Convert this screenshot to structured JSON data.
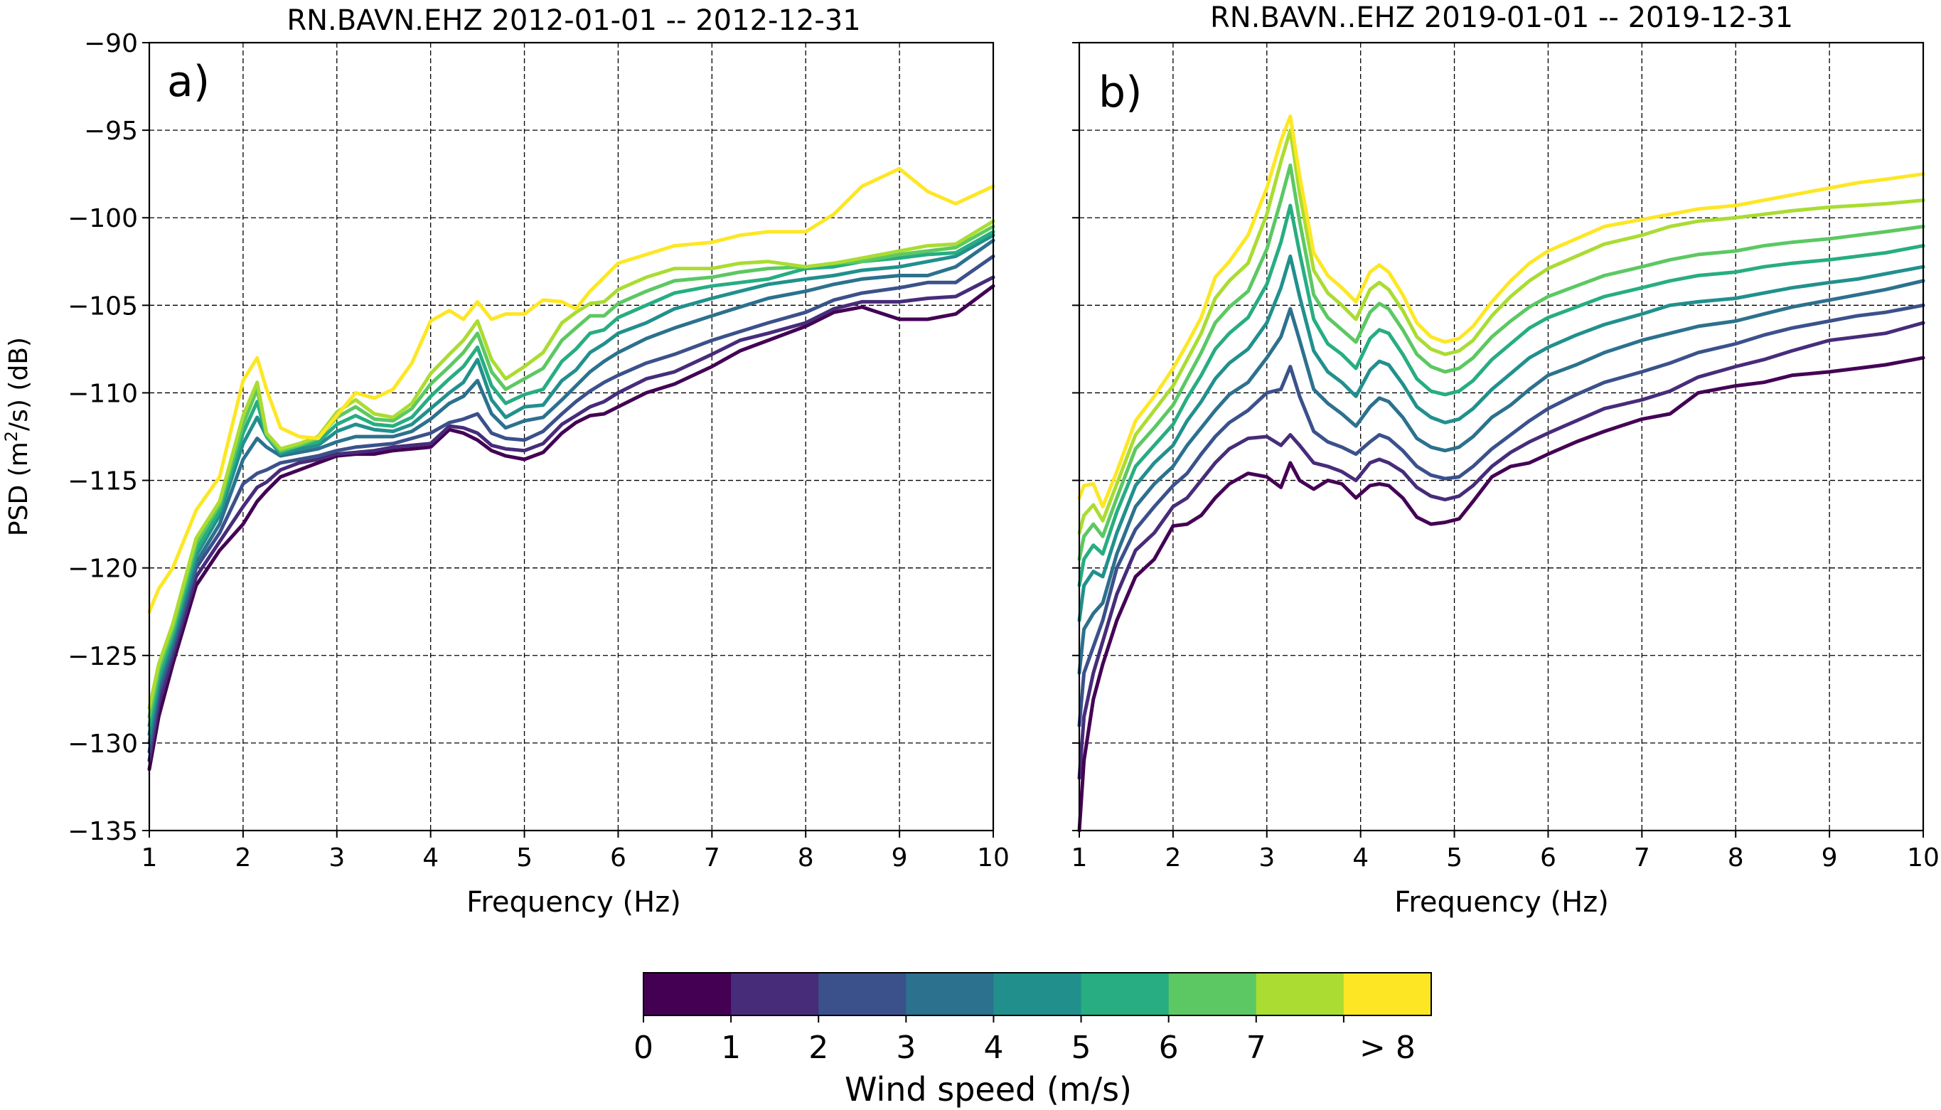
{
  "figure": {
    "colorbar": {
      "label": "Wind speed (m/s)",
      "tick_labels": [
        "0",
        "1",
        "2",
        "3",
        "4",
        "5",
        "6",
        "7",
        "> 8"
      ],
      "colors": [
        "#440154",
        "#472c7a",
        "#3b518b",
        "#2c718e",
        "#21908d",
        "#27ad81",
        "#5cc863",
        "#aadc32",
        "#fde725"
      ]
    }
  },
  "chart_data": [
    {
      "type": "line",
      "panel_label": "a)",
      "title": "RN.BAVN.EHZ  2012-01-01 -- 2012-12-31",
      "xlabel": "Frequency (Hz)",
      "ylabel_parts": [
        "PSD (m",
        "2",
        "/s) (dB)"
      ],
      "xlim": [
        1,
        10
      ],
      "ylim": [
        -135,
        -90
      ],
      "xticks": [
        1,
        2,
        3,
        4,
        5,
        6,
        7,
        8,
        9,
        10
      ],
      "yticks": [
        -135,
        -130,
        -125,
        -120,
        -115,
        -110,
        -105,
        -100,
        -95,
        -90
      ],
      "ytick_labels": [
        "−135",
        "−130",
        "−125",
        "−120",
        "−115",
        "−110",
        "−105",
        "−100",
        "−95",
        "−90"
      ],
      "grid": true,
      "x": [
        1,
        1.1,
        1.25,
        1.5,
        1.75,
        2,
        2.15,
        2.25,
        2.4,
        2.6,
        2.8,
        3,
        3.2,
        3.4,
        3.6,
        3.8,
        4,
        4.2,
        4.35,
        4.5,
        4.65,
        4.8,
        5,
        5.2,
        5.4,
        5.55,
        5.7,
        5.85,
        6,
        6.3,
        6.6,
        7,
        7.3,
        7.6,
        8,
        8.3,
        8.6,
        9,
        9.3,
        9.6,
        10
      ],
      "series": [
        {
          "color": "#440154",
          "values": [
            -131.5,
            -128.5,
            -125.5,
            -121,
            -119,
            -117.5,
            -116.2,
            -115.6,
            -114.8,
            -114.4,
            -114,
            -113.6,
            -113.5,
            -113.5,
            -113.3,
            -113.2,
            -113.1,
            -112.1,
            -112.3,
            -112.7,
            -113.3,
            -113.6,
            -113.8,
            -113.4,
            -112.3,
            -111.7,
            -111.3,
            -111.2,
            -110.8,
            -110,
            -109.5,
            -108.5,
            -107.6,
            -107,
            -106.2,
            -105.4,
            -105.1,
            -105.8,
            -105.8,
            -105.5,
            -103.9
          ]
        },
        {
          "color": "#472c7a",
          "values": [
            -131,
            -127.8,
            -125,
            -120.5,
            -118.5,
            -116.5,
            -115.4,
            -115.1,
            -114.4,
            -114,
            -113.8,
            -113.5,
            -113.4,
            -113.3,
            -113.1,
            -113,
            -112.9,
            -111.9,
            -112,
            -112.3,
            -113,
            -113.2,
            -113.3,
            -112.9,
            -111.8,
            -111.3,
            -110.8,
            -110.5,
            -110,
            -109.2,
            -108.8,
            -107.8,
            -107,
            -106.6,
            -106,
            -105.2,
            -104.8,
            -104.8,
            -104.6,
            -104.5,
            -103.4
          ]
        },
        {
          "color": "#3b518b",
          "values": [
            -130.5,
            -127.2,
            -124.6,
            -120,
            -118,
            -115.2,
            -114.6,
            -114.4,
            -114,
            -113.8,
            -113.6,
            -113.3,
            -113.1,
            -113,
            -112.9,
            -112.6,
            -112.3,
            -111.7,
            -111.5,
            -111.2,
            -112.3,
            -112.6,
            -112.7,
            -112.2,
            -111.2,
            -110.5,
            -109.9,
            -109.4,
            -109,
            -108.3,
            -107.8,
            -107,
            -106.5,
            -106,
            -105.4,
            -104.7,
            -104.3,
            -104,
            -103.7,
            -103.7,
            -102.2
          ]
        },
        {
          "color": "#2c718e",
          "values": [
            -130,
            -126.8,
            -124.3,
            -119.7,
            -117.5,
            -113.8,
            -112.6,
            -113.1,
            -113.6,
            -113.4,
            -113.2,
            -112.8,
            -112.5,
            -112.5,
            -112.5,
            -112.2,
            -111.5,
            -110.6,
            -110.2,
            -109.3,
            -111.2,
            -112,
            -111.6,
            -111.4,
            -110.4,
            -109.6,
            -108.8,
            -108.2,
            -107.7,
            -106.9,
            -106.3,
            -105.6,
            -105.1,
            -104.6,
            -104.2,
            -103.8,
            -103.5,
            -103.3,
            -103.3,
            -102.8,
            -101.3
          ]
        },
        {
          "color": "#21908d",
          "values": [
            -129.5,
            -126.5,
            -124,
            -119.3,
            -117,
            -112.9,
            -111.4,
            -112.5,
            -113.5,
            -113.2,
            -113,
            -112.2,
            -111.8,
            -112.1,
            -112.2,
            -111.8,
            -110.9,
            -110,
            -109.4,
            -108.1,
            -110.4,
            -111.4,
            -110.8,
            -110.7,
            -109.3,
            -108.7,
            -107.7,
            -107.2,
            -106.6,
            -106,
            -105.2,
            -104.6,
            -104.2,
            -103.8,
            -103.5,
            -103.3,
            -103,
            -102.8,
            -102.5,
            -102.2,
            -101
          ]
        },
        {
          "color": "#27ad81",
          "values": [
            -129,
            -126.2,
            -123.8,
            -119,
            -116.7,
            -112.3,
            -110.5,
            -112.5,
            -113.4,
            -113,
            -112.8,
            -111.8,
            -111.3,
            -111.8,
            -111.9,
            -111.4,
            -110.2,
            -109.2,
            -108.5,
            -107.4,
            -109.6,
            -110.6,
            -110.1,
            -109.8,
            -108.2,
            -107.5,
            -106.6,
            -106.4,
            -105.7,
            -105,
            -104.3,
            -103.9,
            -103.7,
            -103.5,
            -102.9,
            -102.8,
            -102.5,
            -102.3,
            -102.1,
            -102,
            -100.8
          ]
        },
        {
          "color": "#5cc863",
          "values": [
            -128.5,
            -125.8,
            -123.5,
            -118.6,
            -116.4,
            -111.8,
            -109.8,
            -112.4,
            -113.3,
            -113,
            -112.6,
            -111.4,
            -110.8,
            -111.5,
            -111.6,
            -110.9,
            -109.5,
            -108.5,
            -107.7,
            -106.6,
            -108.8,
            -109.8,
            -109.2,
            -108.6,
            -107,
            -106.3,
            -105.6,
            -105.6,
            -104.9,
            -104.2,
            -103.6,
            -103.4,
            -103.1,
            -102.9,
            -102.8,
            -102.6,
            -102.5,
            -102.1,
            -101.9,
            -101.7,
            -100.5
          ]
        },
        {
          "color": "#aadc32",
          "values": [
            -128,
            -125.5,
            -123.2,
            -118.3,
            -116.2,
            -111.3,
            -109.4,
            -112.3,
            -113.2,
            -112.9,
            -112.5,
            -111.1,
            -110.4,
            -111.2,
            -111.4,
            -110.6,
            -108.9,
            -107.8,
            -107,
            -105.9,
            -108.1,
            -109.2,
            -108.5,
            -107.7,
            -106,
            -105.4,
            -104.9,
            -104.8,
            -104.1,
            -103.4,
            -102.9,
            -102.9,
            -102.6,
            -102.5,
            -102.8,
            -102.6,
            -102.3,
            -101.9,
            -101.6,
            -101.5,
            -100.2
          ]
        },
        {
          "color": "#fde725",
          "values": [
            -122.5,
            -121.2,
            -120,
            -116.7,
            -114.8,
            -109.3,
            -108,
            -109.8,
            -112,
            -112.5,
            -112.6,
            -111.3,
            -110,
            -110.3,
            -109.8,
            -108.3,
            -105.9,
            -105.3,
            -105.8,
            -104.8,
            -105.8,
            -105.5,
            -105.5,
            -104.7,
            -104.8,
            -105.2,
            -104.2,
            -103.4,
            -102.6,
            -102.1,
            -101.6,
            -101.4,
            -101,
            -100.8,
            -100.8,
            -99.8,
            -98.2,
            -97.2,
            -98.5,
            -99.2,
            -98.2
          ]
        }
      ]
    },
    {
      "type": "line",
      "panel_label": "b)",
      "title": "RN.BAVN..EHZ   2019-01-01 -- 2019-12-31",
      "xlabel": "Frequency (Hz)",
      "xlim": [
        1,
        10
      ],
      "ylim": [
        -135,
        -90
      ],
      "xticks": [
        1,
        2,
        3,
        4,
        5,
        6,
        7,
        8,
        9,
        10
      ],
      "grid": true,
      "x": [
        1,
        1.05,
        1.15,
        1.25,
        1.4,
        1.6,
        1.8,
        2,
        2.15,
        2.3,
        2.45,
        2.6,
        2.8,
        3,
        3.15,
        3.25,
        3.35,
        3.5,
        3.65,
        3.8,
        3.95,
        4.1,
        4.2,
        4.3,
        4.45,
        4.6,
        4.75,
        4.9,
        5.05,
        5.2,
        5.4,
        5.6,
        5.8,
        6,
        6.3,
        6.6,
        7,
        7.3,
        7.6,
        8,
        8.3,
        8.6,
        9,
        9.3,
        9.6,
        10
      ],
      "series": [
        {
          "color": "#440154",
          "values": [
            -135,
            -131,
            -127.5,
            -125.5,
            -123,
            -120.5,
            -119.5,
            -117.6,
            -117.5,
            -117,
            -116,
            -115.2,
            -114.6,
            -114.8,
            -115.4,
            -114,
            -115,
            -115.5,
            -115,
            -115.2,
            -116,
            -115.3,
            -115.2,
            -115.3,
            -116,
            -117.1,
            -117.5,
            -117.4,
            -117.2,
            -116.2,
            -114.8,
            -114.2,
            -114,
            -113.5,
            -112.8,
            -112.2,
            -111.5,
            -111.2,
            -110,
            -109.6,
            -109.4,
            -109,
            -108.8,
            -108.6,
            -108.4,
            -108
          ]
        },
        {
          "color": "#472c7a",
          "values": [
            -132,
            -128.5,
            -126,
            -124.2,
            -121.5,
            -119,
            -118,
            -116.5,
            -116,
            -115,
            -114,
            -113.2,
            -112.6,
            -112.5,
            -113,
            -112.4,
            -113,
            -114,
            -114.2,
            -114.5,
            -115,
            -114,
            -113.8,
            -114,
            -114.5,
            -115.4,
            -115.9,
            -116.1,
            -115.9,
            -115.3,
            -114.2,
            -113.4,
            -112.8,
            -112.3,
            -111.6,
            -110.9,
            -110.4,
            -109.9,
            -109.1,
            -108.5,
            -108.1,
            -107.6,
            -107,
            -106.8,
            -106.6,
            -106
          ]
        },
        {
          "color": "#3b518b",
          "values": [
            -129,
            -126,
            -124.5,
            -123,
            -120,
            -117.8,
            -116.5,
            -115.3,
            -114.6,
            -113.5,
            -112.5,
            -111.7,
            -111,
            -110,
            -109.8,
            -108.5,
            -110.2,
            -112.2,
            -112.8,
            -113.1,
            -113.5,
            -112.8,
            -112.4,
            -112.6,
            -113.3,
            -114.2,
            -114.7,
            -114.9,
            -114.8,
            -114.2,
            -113.2,
            -112.4,
            -111.6,
            -110.9,
            -110.1,
            -109.4,
            -108.8,
            -108.3,
            -107.7,
            -107.2,
            -106.7,
            -106.3,
            -105.9,
            -105.6,
            -105.4,
            -105
          ]
        },
        {
          "color": "#2c718e",
          "values": [
            -126,
            -123.5,
            -122.6,
            -122,
            -119.2,
            -116.5,
            -115.2,
            -114.2,
            -113,
            -112,
            -111,
            -110.1,
            -109.4,
            -108,
            -106.8,
            -105.2,
            -107,
            -109.8,
            -110.6,
            -111.2,
            -111.9,
            -110.8,
            -110.3,
            -110.5,
            -111.4,
            -112.6,
            -113.1,
            -113.3,
            -113.1,
            -112.5,
            -111.4,
            -110.7,
            -109.8,
            -109,
            -108.4,
            -107.7,
            -107,
            -106.6,
            -106.2,
            -105.9,
            -105.5,
            -105.1,
            -104.7,
            -104.4,
            -104.1,
            -103.6
          ]
        },
        {
          "color": "#21908d",
          "values": [
            -123,
            -121,
            -120.2,
            -120.5,
            -118,
            -115.3,
            -114,
            -113,
            -111.6,
            -110.5,
            -109.2,
            -108.3,
            -107.5,
            -106,
            -104,
            -102.2,
            -104.5,
            -107.6,
            -108.8,
            -109.4,
            -110.2,
            -108.7,
            -108.2,
            -108.4,
            -109.5,
            -110.8,
            -111.4,
            -111.7,
            -111.5,
            -110.9,
            -109.8,
            -108.9,
            -108,
            -107.4,
            -106.7,
            -106.1,
            -105.5,
            -105,
            -104.8,
            -104.6,
            -104.3,
            -104,
            -103.7,
            -103.5,
            -103.2,
            -102.8
          ]
        },
        {
          "color": "#27ad81",
          "values": [
            -121,
            -119.5,
            -118.7,
            -119.2,
            -116.8,
            -114.2,
            -113,
            -111.8,
            -110.3,
            -109,
            -107.5,
            -106.6,
            -105.7,
            -103.8,
            -101.4,
            -99.3,
            -102,
            -105.8,
            -107.2,
            -107.8,
            -108.6,
            -106.9,
            -106.4,
            -106.6,
            -107.8,
            -109.2,
            -109.9,
            -110.1,
            -109.9,
            -109.3,
            -108.1,
            -107.2,
            -106.3,
            -105.7,
            -105.1,
            -104.5,
            -104,
            -103.6,
            -103.3,
            -103.1,
            -102.8,
            -102.6,
            -102.4,
            -102.2,
            -102,
            -101.6
          ]
        },
        {
          "color": "#5cc863",
          "values": [
            -119.5,
            -118.2,
            -117.5,
            -118.2,
            -116,
            -113.2,
            -112,
            -110.7,
            -109.2,
            -107.7,
            -106,
            -105.1,
            -104.2,
            -101.8,
            -99,
            -97,
            -100.2,
            -104.4,
            -105.7,
            -106.4,
            -107.1,
            -105.4,
            -104.9,
            -105.2,
            -106.4,
            -107.8,
            -108.5,
            -108.8,
            -108.6,
            -108,
            -106.8,
            -105.9,
            -105.1,
            -104.5,
            -103.9,
            -103.3,
            -102.8,
            -102.4,
            -102.1,
            -101.9,
            -101.6,
            -101.4,
            -101.2,
            -101,
            -100.8,
            -100.5
          ]
        },
        {
          "color": "#aadc32",
          "values": [
            -118,
            -117,
            -116.4,
            -117.3,
            -115.2,
            -112.4,
            -111,
            -109.6,
            -108.1,
            -106.6,
            -104.6,
            -103.6,
            -102.6,
            -99.8,
            -96.8,
            -95,
            -98.6,
            -103,
            -104.3,
            -105,
            -105.8,
            -104.1,
            -103.7,
            -104.1,
            -105.3,
            -106.8,
            -107.5,
            -107.8,
            -107.6,
            -107,
            -105.6,
            -104.5,
            -103.6,
            -102.9,
            -102.2,
            -101.5,
            -101,
            -100.5,
            -100.2,
            -100,
            -99.8,
            -99.6,
            -99.4,
            -99.3,
            -99.2,
            -99
          ]
        },
        {
          "color": "#fde725",
          "values": [
            -116,
            -115.3,
            -115.2,
            -116.5,
            -114.5,
            -111.6,
            -110.2,
            -108.6,
            -107.2,
            -105.7,
            -103.4,
            -102.5,
            -101,
            -98.3,
            -95.6,
            -94.2,
            -97.6,
            -102,
            -103.3,
            -104,
            -104.8,
            -103.1,
            -102.7,
            -103.1,
            -104.4,
            -106,
            -106.8,
            -107.1,
            -106.9,
            -106.2,
            -104.8,
            -103.6,
            -102.6,
            -101.9,
            -101.2,
            -100.5,
            -100.1,
            -99.8,
            -99.5,
            -99.3,
            -99,
            -98.7,
            -98.3,
            -98,
            -97.8,
            -97.5
          ]
        }
      ]
    }
  ]
}
